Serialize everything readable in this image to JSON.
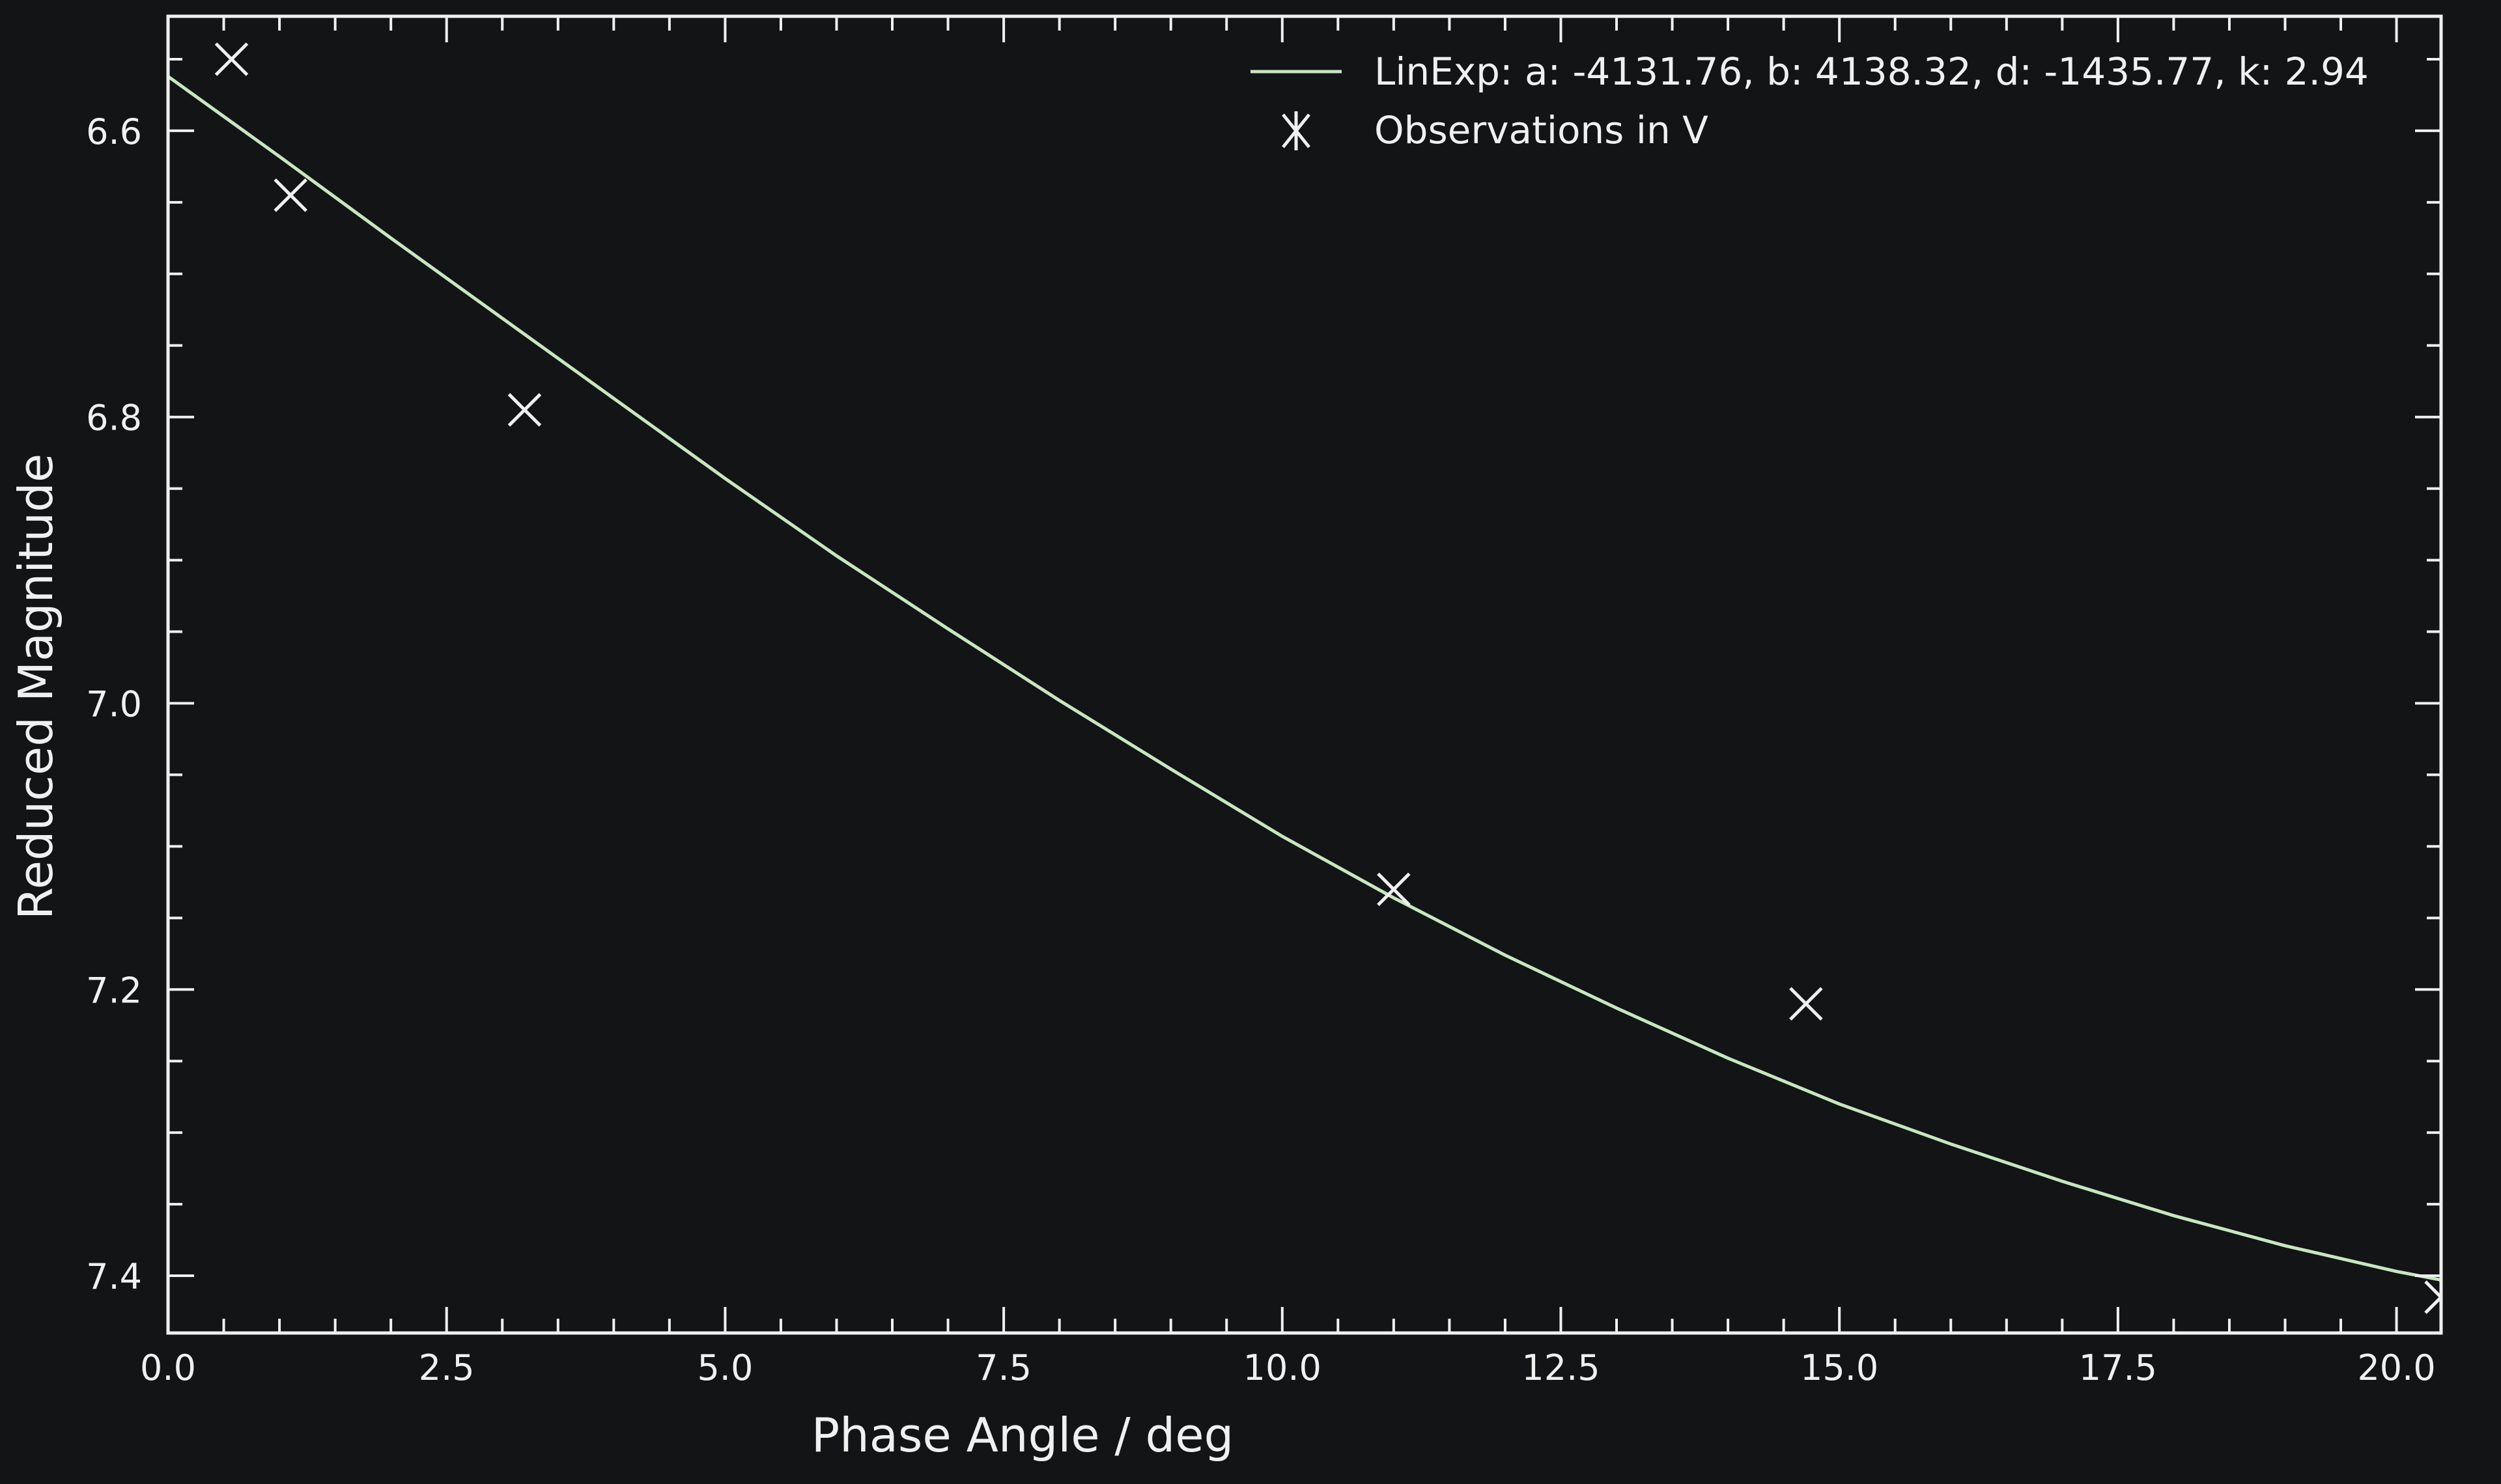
{
  "colors": {
    "background": "#121416",
    "axes": "#f0f0f0",
    "fit_line": "#c8e6c0",
    "markers": "#f0f0f0"
  },
  "chart_data": {
    "type": "scatter",
    "xlabel": "Phase Angle / deg",
    "ylabel": "Reduced Magnitude",
    "xlim": [
      0.0,
      20.4
    ],
    "ylim": [
      7.44,
      6.52
    ],
    "y_inverted": true,
    "grid": false,
    "legend_position": "top-right",
    "x_ticks": [
      "0.0",
      "2.5",
      "5.0",
      "7.5",
      "10.0",
      "12.5",
      "15.0",
      "17.5",
      "20.0"
    ],
    "y_ticks": [
      "6.6",
      "6.8",
      "7.0",
      "7.2",
      "7.4"
    ],
    "series": [
      {
        "name": "LinExp: a: -4131.76, b: 4138.32, d: -1435.77, k: 2.94",
        "kind": "line",
        "x": [
          0.0,
          1.0,
          2.0,
          3.0,
          4.0,
          5.0,
          6.0,
          7.0,
          8.0,
          9.0,
          10.0,
          11.0,
          12.0,
          13.0,
          14.0,
          15.0,
          16.0,
          17.0,
          18.0,
          19.0,
          20.0,
          20.4
        ],
        "y": [
          6.562,
          6.618,
          6.675,
          6.731,
          6.787,
          6.843,
          6.897,
          6.948,
          6.998,
          7.046,
          7.093,
          7.136,
          7.176,
          7.213,
          7.248,
          7.28,
          7.308,
          7.334,
          7.358,
          7.379,
          7.397,
          7.403
        ]
      },
      {
        "name": "Observations in V",
        "kind": "scatter",
        "marker": "x",
        "x": [
          0.57,
          1.1,
          3.2,
          11.0,
          14.7,
          20.4
        ],
        "y": [
          6.55,
          6.645,
          6.795,
          7.13,
          7.21,
          7.415
        ]
      }
    ]
  }
}
